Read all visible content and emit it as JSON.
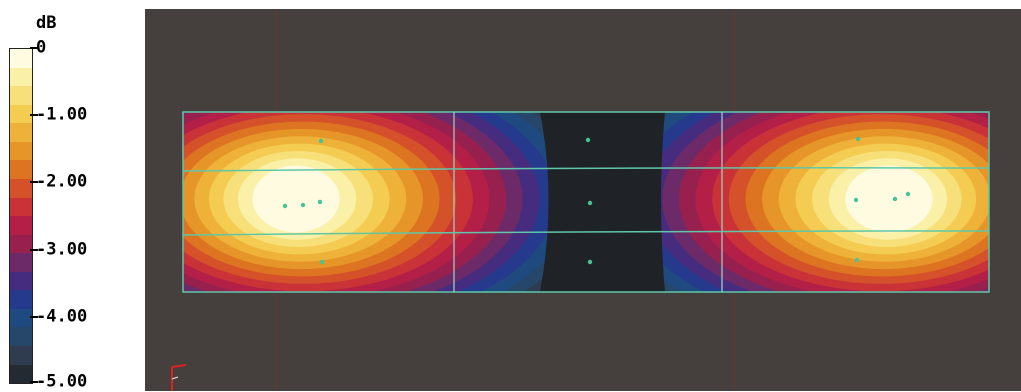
{
  "legend": {
    "unit": "dB",
    "ticks": [
      {
        "label": "0",
        "value": 0
      },
      {
        "label": "-1.00",
        "value": -1
      },
      {
        "label": "-2.00",
        "value": -2
      },
      {
        "label": "-3.00",
        "value": -3
      },
      {
        "label": "-4.00",
        "value": -4
      },
      {
        "label": "-5.00",
        "value": -5
      }
    ],
    "range": [
      -5,
      0
    ],
    "bands": [
      "#fefbe0",
      "#fbf0a8",
      "#f7e07a",
      "#f4cc52",
      "#eeb23a",
      "#e69528",
      "#dd7421",
      "#d4512a",
      "#c93338",
      "#b41f47",
      "#98204f",
      "#6d2a68",
      "#452c7f",
      "#253a8c",
      "#1f4a80",
      "#27476a",
      "#2f3c4f",
      "#242a31"
    ]
  },
  "colors": {
    "viewport_bg": "#45403d",
    "grid_line": "#5fc7a8",
    "marker": "#47c497"
  }
}
